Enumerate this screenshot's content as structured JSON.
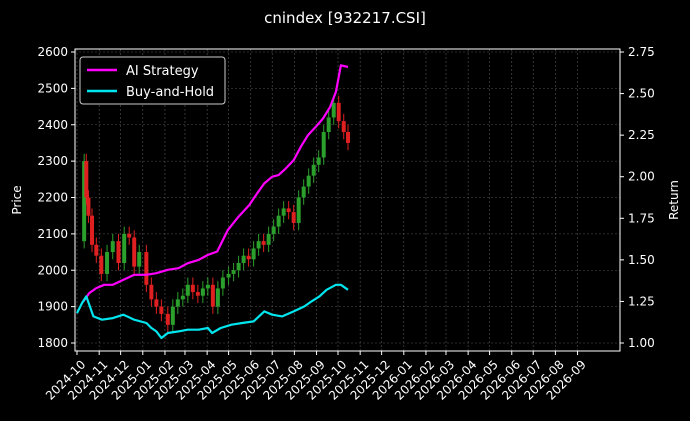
{
  "chart_data": {
    "type": "line",
    "title": "cnindex [932217.CSI]",
    "ylabel_left": "Price",
    "ylabel_right": "Return",
    "ylim_left": [
      1730,
      2605
    ],
    "ylim_right": [
      0.98,
      2.75
    ],
    "xlim": [
      "2024-10-01",
      "2026-10-01"
    ],
    "left_ticks": [
      1800,
      1900,
      2000,
      2100,
      2200,
      2300,
      2400,
      2500,
      2600
    ],
    "right_ticks": [
      "1.00",
      "1.25",
      "1.50",
      "1.75",
      "2.00",
      "2.25",
      "2.50",
      "2.75"
    ],
    "x_ticks": [
      "2024-10",
      "2024-11",
      "2024-12",
      "2025-01",
      "2025-02",
      "2025-03",
      "2025-04",
      "2025-05",
      "2025-06",
      "2025-07",
      "2025-08",
      "2025-09",
      "2025-10",
      "2025-11",
      "2025-12",
      "2026-01",
      "2026-02",
      "2026-03",
      "2026-04",
      "2026-05",
      "2026-06",
      "2026-07",
      "2026-08",
      "2026-09"
    ],
    "grid": true,
    "legend_position": "top-left",
    "colors": {
      "background": "#000000",
      "ai_strategy": "#ff00ff",
      "buy_and_hold": "#00e5ee",
      "up": "#2ca02c",
      "down": "#e02020",
      "grid": "#555555"
    },
    "series": [
      {
        "name": "AI Strategy",
        "axis": "right",
        "x": [
          "2024-10-10",
          "2024-10-18",
          "2024-10-28",
          "2024-11-08",
          "2024-11-20",
          "2024-12-05",
          "2024-12-20",
          "2025-01-06",
          "2025-01-20",
          "2025-02-05",
          "2025-02-20",
          "2025-03-05",
          "2025-03-20",
          "2025-04-02",
          "2025-04-15",
          "2025-04-30",
          "2025-05-15",
          "2025-05-30",
          "2025-06-10",
          "2025-06-20",
          "2025-07-01",
          "2025-07-10",
          "2025-07-20",
          "2025-07-31",
          "2025-08-10",
          "2025-08-20",
          "2025-08-31",
          "2025-09-10",
          "2025-09-20",
          "2025-09-28",
          "2025-10-05",
          "2025-10-15"
        ],
        "values": [
          1.25,
          1.3,
          1.33,
          1.35,
          1.35,
          1.38,
          1.41,
          1.41,
          1.42,
          1.44,
          1.45,
          1.48,
          1.5,
          1.53,
          1.55,
          1.68,
          1.76,
          1.83,
          1.9,
          1.96,
          2.0,
          2.01,
          2.05,
          2.1,
          2.18,
          2.25,
          2.3,
          2.35,
          2.42,
          2.51,
          2.67,
          2.66
        ]
      },
      {
        "name": "Buy-and-Hold",
        "axis": "right",
        "x": [
          "2024-10-01",
          "2024-10-08",
          "2024-10-14",
          "2024-10-24",
          "2024-11-05",
          "2024-11-20",
          "2024-12-05",
          "2024-12-20",
          "2025-01-06",
          "2025-01-13",
          "2025-01-20",
          "2025-01-27",
          "2025-02-05",
          "2025-02-20",
          "2025-03-05",
          "2025-03-20",
          "2025-04-02",
          "2025-04-08",
          "2025-04-20",
          "2025-05-05",
          "2025-05-20",
          "2025-06-05",
          "2025-06-20",
          "2025-07-01",
          "2025-07-15",
          "2025-07-31",
          "2025-08-15",
          "2025-08-25",
          "2025-09-05",
          "2025-09-15",
          "2025-09-28",
          "2025-10-05",
          "2025-10-15"
        ],
        "values": [
          1.18,
          1.24,
          1.28,
          1.16,
          1.14,
          1.15,
          1.17,
          1.14,
          1.12,
          1.09,
          1.07,
          1.03,
          1.06,
          1.07,
          1.08,
          1.08,
          1.09,
          1.06,
          1.09,
          1.11,
          1.12,
          1.13,
          1.19,
          1.17,
          1.16,
          1.19,
          1.22,
          1.25,
          1.28,
          1.32,
          1.35,
          1.35,
          1.32
        ]
      }
    ],
    "price_candles": {
      "axis": "left",
      "x": [
        "2024-10-08",
        "2024-10-11",
        "2024-10-14",
        "2024-10-17",
        "2024-10-22",
        "2024-10-28",
        "2024-11-04",
        "2024-11-12",
        "2024-11-20",
        "2024-11-28",
        "2024-12-06",
        "2024-12-13",
        "2024-12-20",
        "2024-12-27",
        "2025-01-06",
        "2025-01-13",
        "2025-01-20",
        "2025-01-27",
        "2025-02-05",
        "2025-02-12",
        "2025-02-19",
        "2025-02-26",
        "2025-03-05",
        "2025-03-12",
        "2025-03-19",
        "2025-03-26",
        "2025-04-02",
        "2025-04-09",
        "2025-04-16",
        "2025-04-23",
        "2025-05-01",
        "2025-05-08",
        "2025-05-15",
        "2025-05-22",
        "2025-05-29",
        "2025-06-05",
        "2025-06-12",
        "2025-06-19",
        "2025-06-26",
        "2025-07-03",
        "2025-07-10",
        "2025-07-17",
        "2025-07-24",
        "2025-07-31",
        "2025-08-07",
        "2025-08-14",
        "2025-08-21",
        "2025-08-28",
        "2025-09-04",
        "2025-09-11",
        "2025-09-18",
        "2025-09-25",
        "2025-10-02",
        "2025-10-09",
        "2025-10-15"
      ],
      "values": [
        2080,
        2300,
        2200,
        2150,
        2070,
        2040,
        1990,
        2050,
        2080,
        2020,
        2100,
        2090,
        2010,
        2050,
        1960,
        1920,
        1900,
        1880,
        1850,
        1900,
        1920,
        1930,
        1960,
        1940,
        1930,
        1950,
        1960,
        1900,
        1950,
        1980,
        1990,
        2000,
        2020,
        2040,
        2030,
        2060,
        2080,
        2070,
        2100,
        2120,
        2150,
        2170,
        2160,
        2130,
        2200,
        2230,
        2260,
        2290,
        2310,
        2380,
        2420,
        2460,
        2410,
        2380,
        2350
      ]
    }
  }
}
